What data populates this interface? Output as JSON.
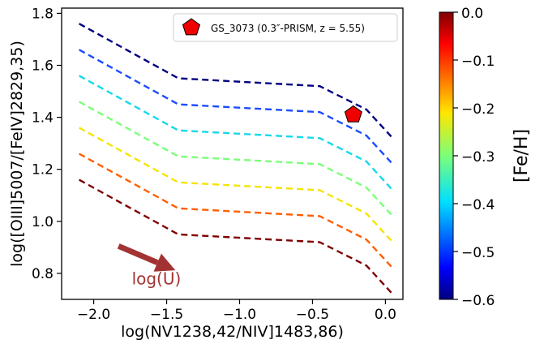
{
  "chart_data": {
    "type": "line",
    "xlabel": "log(NV1238,42/NIV]1483,86)",
    "ylabel": "log([OIII]5007/[FeIV]2829,35)",
    "xlim": [
      -2.22,
      0.12
    ],
    "ylim": [
      0.7,
      1.82
    ],
    "xticks": [
      -2.0,
      -1.5,
      -1.0,
      -0.5,
      0.0
    ],
    "xtick_labels": [
      "−2.0",
      "−1.5",
      "−1.0",
      "−0.5",
      "0.0"
    ],
    "yticks": [
      0.8,
      1.0,
      1.2,
      1.4,
      1.6,
      1.8
    ],
    "ytick_labels": [
      "0.8",
      "1.0",
      "1.2",
      "1.4",
      "1.6",
      "1.8"
    ],
    "grid": false,
    "line_style": "dashed",
    "x": [
      -2.1,
      -1.42,
      -0.45,
      -0.13,
      0.05
    ],
    "series": [
      {
        "fe_h": -0.6,
        "color": "#00007f",
        "values": [
          1.76,
          1.55,
          1.52,
          1.43,
          1.32
        ]
      },
      {
        "fe_h": -0.5,
        "color": "#1a4cff",
        "values": [
          1.66,
          1.45,
          1.42,
          1.33,
          1.22
        ]
      },
      {
        "fe_h": -0.4,
        "color": "#16d8ec",
        "values": [
          1.56,
          1.35,
          1.32,
          1.23,
          1.12
        ]
      },
      {
        "fe_h": -0.3,
        "color": "#7cff79",
        "values": [
          1.46,
          1.25,
          1.22,
          1.13,
          1.02
        ]
      },
      {
        "fe_h": -0.2,
        "color": "#f5e400",
        "values": [
          1.36,
          1.15,
          1.12,
          1.03,
          0.92
        ]
      },
      {
        "fe_h": -0.1,
        "color": "#ff5e00",
        "values": [
          1.26,
          1.05,
          1.02,
          0.93,
          0.82
        ]
      },
      {
        "fe_h": 0.0,
        "color": "#7f0000",
        "values": [
          1.16,
          0.95,
          0.92,
          0.83,
          0.72
        ]
      }
    ],
    "marker_point": {
      "x": -0.22,
      "y": 1.41,
      "color": "#ee0000",
      "shape": "pentagon"
    },
    "legend": {
      "label": "GS_3073 (0.3″-PRISM, z = 5.55)",
      "placement": "top-right"
    },
    "arrow": {
      "from": [
        -1.83,
        0.905
      ],
      "to": [
        -1.44,
        0.812
      ],
      "color": "#a33333"
    },
    "arrow_label": {
      "text": "log(U)",
      "x": -1.57,
      "y": 0.78,
      "color": "#a33333"
    },
    "colorbar": {
      "label": "[Fe/H]",
      "range": [
        -0.6,
        0.0
      ],
      "ticks": [
        0.0,
        -0.1,
        -0.2,
        -0.3,
        -0.4,
        -0.5,
        -0.6
      ],
      "tick_labels": [
        "0.0",
        "−0.1",
        "−0.2",
        "−0.3",
        "−0.4",
        "−0.5",
        "−0.6"
      ],
      "colormap": "jet"
    }
  }
}
